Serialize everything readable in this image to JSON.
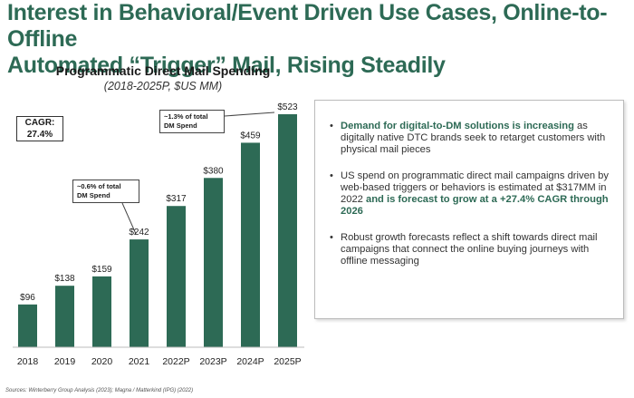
{
  "page": {
    "title_line1": "Interest in Behavioral/Event Driven Use Cases, Online-to-Offline",
    "title_line2": "Automated “Trigger” Mail, Rising Steadily",
    "source": "Sources: Winterberry Group Analysis (2023); Magna / Matterkind (IPG) (2022)"
  },
  "colors": {
    "title": "#2d6a55",
    "bar": "#2d6a55",
    "highlight": "#2d6a55"
  },
  "cagr": {
    "label": "CAGR:",
    "value": "27.4%"
  },
  "callouts": [
    {
      "line1": "~0.6% of total",
      "line2": "DM Spend"
    },
    {
      "line1": "~1.3% of total",
      "line2": "DM Spend"
    }
  ],
  "chart_data": {
    "type": "bar",
    "title": "Programmatic Direct Mail Spending",
    "subtitle": "(2018-2025P, $US MM)",
    "categories": [
      "2018",
      "2019",
      "2020",
      "2021",
      "2022P",
      "2023P",
      "2024P",
      "2025P"
    ],
    "values": [
      96,
      138,
      159,
      242,
      317,
      380,
      459,
      523
    ],
    "data_labels": [
      "$96",
      "$138",
      "$159",
      "$242",
      "$317",
      "$380",
      "$459",
      "$523"
    ],
    "xlabel": "",
    "ylabel": "",
    "ylim": [
      0,
      523
    ],
    "grid": false,
    "legend": "none"
  },
  "panel": {
    "bullets": [
      {
        "bold": "Demand for digital-to-DM solutions is increasing",
        "text": " as digitally native DTC brands seek to retarget customers with physical mail pieces"
      },
      {
        "text": "US spend on programmatic direct mail campaigns driven by web-based triggers or behaviors is estimated at $317MM in 2022",
        "bold": " and is forecast to grow at a +27.4% CAGR through 2026"
      },
      {
        "text": "Robust growth forecasts reflect a shift towards direct mail campaigns that connect the online buying journeys with offline messaging"
      }
    ]
  }
}
